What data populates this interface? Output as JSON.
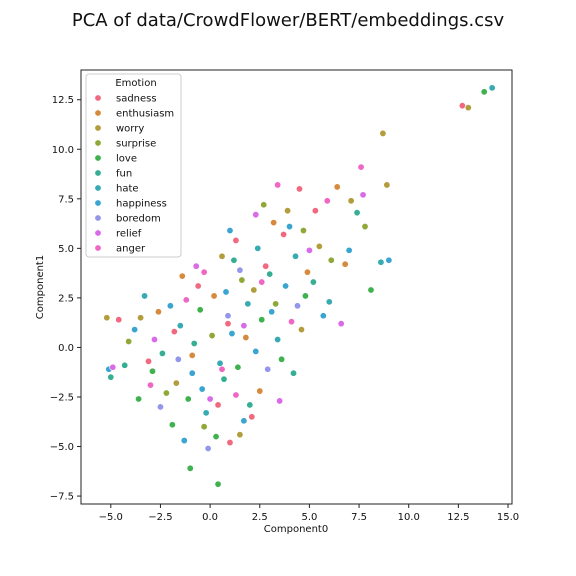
{
  "chart_data": {
    "type": "scatter",
    "title": "PCA of data/CrowdFlower/BERT/embeddings.csv",
    "xlabel": "Component0",
    "ylabel": "Component1",
    "xlim": [
      -6.5,
      15.2
    ],
    "ylim": [
      -7.9,
      14.0
    ],
    "x_ticks": [
      -5.0,
      -2.5,
      0.0,
      2.5,
      5.0,
      7.5,
      10.0,
      12.5,
      15.0
    ],
    "x_tick_labels": [
      "−5.0",
      "−2.5",
      "0.0",
      "2.5",
      "5.0",
      "7.5",
      "10.0",
      "12.5",
      "15.0"
    ],
    "y_ticks": [
      -7.5,
      -5.0,
      -2.5,
      0.0,
      2.5,
      5.0,
      7.5,
      10.0,
      12.5
    ],
    "y_tick_labels": [
      "−7.5",
      "−5.0",
      "−2.5",
      "0.0",
      "2.5",
      "5.0",
      "7.5",
      "10.0",
      "12.5"
    ],
    "grid": false,
    "legend": {
      "title": "Emotion",
      "placement": "top-left",
      "entries": [
        {
          "name": "sadness",
          "color": "#f0697e"
        },
        {
          "name": "enthusiasm",
          "color": "#d68a3e"
        },
        {
          "name": "worry",
          "color": "#b39c3b"
        },
        {
          "name": "surprise",
          "color": "#8fa838"
        },
        {
          "name": "love",
          "color": "#3fb14f"
        },
        {
          "name": "fun",
          "color": "#36ae93"
        },
        {
          "name": "hate",
          "color": "#37abb1"
        },
        {
          "name": "happiness",
          "color": "#3aa5d0"
        },
        {
          "name": "boredom",
          "color": "#9496ec"
        },
        {
          "name": "relief",
          "color": "#d96ae8"
        },
        {
          "name": "anger",
          "color": "#ef66c4"
        }
      ]
    },
    "series": [
      {
        "name": "sadness",
        "color": "#f0697e",
        "points": [
          [
            -1.8,
            0.8
          ],
          [
            -0.6,
            3.1
          ],
          [
            0.4,
            -2.9
          ],
          [
            1.3,
            5.4
          ],
          [
            2.8,
            4.1
          ],
          [
            4.5,
            8.0
          ],
          [
            -3.1,
            -0.7
          ],
          [
            0.9,
            1.2
          ],
          [
            2.1,
            -3.5
          ],
          [
            3.7,
            5.7
          ],
          [
            -4.6,
            1.4
          ],
          [
            1.0,
            -4.8
          ],
          [
            5.3,
            6.9
          ],
          [
            12.7,
            12.2
          ]
        ]
      },
      {
        "name": "enthusiasm",
        "color": "#d68a3e",
        "points": [
          [
            -2.6,
            1.8
          ],
          [
            -0.9,
            -0.4
          ],
          [
            0.2,
            2.6
          ],
          [
            1.8,
            0.5
          ],
          [
            3.2,
            6.3
          ],
          [
            4.9,
            3.8
          ],
          [
            6.4,
            8.1
          ],
          [
            2.5,
            -2.2
          ],
          [
            -1.4,
            3.6
          ],
          [
            6.8,
            4.2
          ]
        ]
      },
      {
        "name": "worry",
        "color": "#b39c3b",
        "points": [
          [
            -3.5,
            1.5
          ],
          [
            -1.7,
            -1.8
          ],
          [
            0.6,
            4.6
          ],
          [
            2.2,
            2.9
          ],
          [
            3.9,
            6.9
          ],
          [
            5.5,
            5.1
          ],
          [
            7.1,
            7.4
          ],
          [
            8.7,
            10.8
          ],
          [
            8.9,
            8.2
          ],
          [
            -5.2,
            1.5
          ],
          [
            1.5,
            -4.4
          ],
          [
            4.6,
            0.9
          ],
          [
            13.0,
            12.1
          ]
        ]
      },
      {
        "name": "surprise",
        "color": "#8fa838",
        "points": [
          [
            -2.2,
            -2.3
          ],
          [
            0.1,
            0.6
          ],
          [
            1.6,
            3.4
          ],
          [
            3.3,
            2.2
          ],
          [
            4.7,
            5.9
          ],
          [
            6.1,
            4.4
          ],
          [
            7.8,
            6.1
          ],
          [
            -0.3,
            -4.0
          ],
          [
            2.7,
            7.2
          ],
          [
            -4.1,
            0.3
          ]
        ]
      },
      {
        "name": "love",
        "color": "#3fb14f",
        "points": [
          [
            -1.1,
            -2.6
          ],
          [
            -2.9,
            -1.2
          ],
          [
            0.3,
            -4.5
          ],
          [
            1.4,
            -1.0
          ],
          [
            2.6,
            1.4
          ],
          [
            -0.5,
            1.9
          ],
          [
            -1.9,
            -3.9
          ],
          [
            3.6,
            -0.6
          ],
          [
            4.8,
            2.6
          ],
          [
            -3.6,
            -2.6
          ],
          [
            0.4,
            -6.9
          ],
          [
            8.1,
            2.9
          ],
          [
            13.8,
            12.9
          ],
          [
            -1.0,
            -6.1
          ]
        ]
      },
      {
        "name": "fun",
        "color": "#36ae93",
        "points": [
          [
            -2.4,
            -0.3
          ],
          [
            0.7,
            -1.6
          ],
          [
            2.0,
            -2.9
          ],
          [
            -0.8,
            0.2
          ],
          [
            3.0,
            3.7
          ],
          [
            5.2,
            3.3
          ],
          [
            -4.3,
            -0.9
          ],
          [
            1.2,
            4.4
          ],
          [
            4.2,
            -1.3
          ],
          [
            7.4,
            6.8
          ],
          [
            -5.0,
            -1.5
          ]
        ]
      },
      {
        "name": "hate",
        "color": "#37abb1",
        "points": [
          [
            -1.5,
            1.1
          ],
          [
            0.5,
            -0.8
          ],
          [
            1.9,
            2.2
          ],
          [
            3.4,
            0.4
          ],
          [
            -0.2,
            -3.3
          ],
          [
            2.4,
            5.0
          ],
          [
            4.3,
            4.6
          ],
          [
            6.0,
            2.3
          ],
          [
            -3.3,
            2.6
          ],
          [
            8.6,
            4.3
          ],
          [
            14.2,
            13.1
          ]
        ]
      },
      {
        "name": "happiness",
        "color": "#3aa5d0",
        "points": [
          [
            -0.9,
            -1.3
          ],
          [
            1.1,
            0.7
          ],
          [
            2.3,
            -0.2
          ],
          [
            -2.0,
            2.1
          ],
          [
            0.8,
            2.8
          ],
          [
            3.1,
            1.8
          ],
          [
            -0.4,
            -2.1
          ],
          [
            1.7,
            -3.7
          ],
          [
            3.8,
            3.1
          ],
          [
            5.7,
            1.6
          ],
          [
            -1.3,
            -4.7
          ],
          [
            -3.8,
            0.9
          ],
          [
            4.0,
            6.1
          ],
          [
            7.0,
            4.9
          ],
          [
            9.0,
            4.4
          ],
          [
            1.0,
            5.9
          ],
          [
            -5.1,
            -1.1
          ]
        ]
      },
      {
        "name": "boredom",
        "color": "#9496ec",
        "points": [
          [
            -1.6,
            -0.6
          ],
          [
            0.9,
            1.6
          ],
          [
            2.9,
            -1.1
          ],
          [
            -2.5,
            -3.0
          ],
          [
            4.4,
            2.1
          ],
          [
            1.5,
            3.9
          ],
          [
            -0.1,
            -5.1
          ]
        ]
      },
      {
        "name": "relief",
        "color": "#d96ae8",
        "points": [
          [
            -2.8,
            0.4
          ],
          [
            0.0,
            -2.6
          ],
          [
            1.7,
            1.1
          ],
          [
            3.5,
            -2.7
          ],
          [
            -0.7,
            4.1
          ],
          [
            5.0,
            4.9
          ],
          [
            -4.9,
            -1.0
          ],
          [
            2.3,
            6.7
          ],
          [
            6.6,
            1.2
          ],
          [
            7.7,
            7.7
          ]
        ]
      },
      {
        "name": "anger",
        "color": "#ef66c4",
        "points": [
          [
            -1.2,
            2.4
          ],
          [
            0.6,
            -1.1
          ],
          [
            2.6,
            3.3
          ],
          [
            -3.0,
            -1.9
          ],
          [
            4.1,
            1.3
          ],
          [
            1.3,
            -2.4
          ],
          [
            -0.3,
            3.8
          ],
          [
            5.9,
            7.4
          ],
          [
            3.4,
            8.2
          ],
          [
            7.6,
            9.1
          ]
        ]
      }
    ]
  }
}
